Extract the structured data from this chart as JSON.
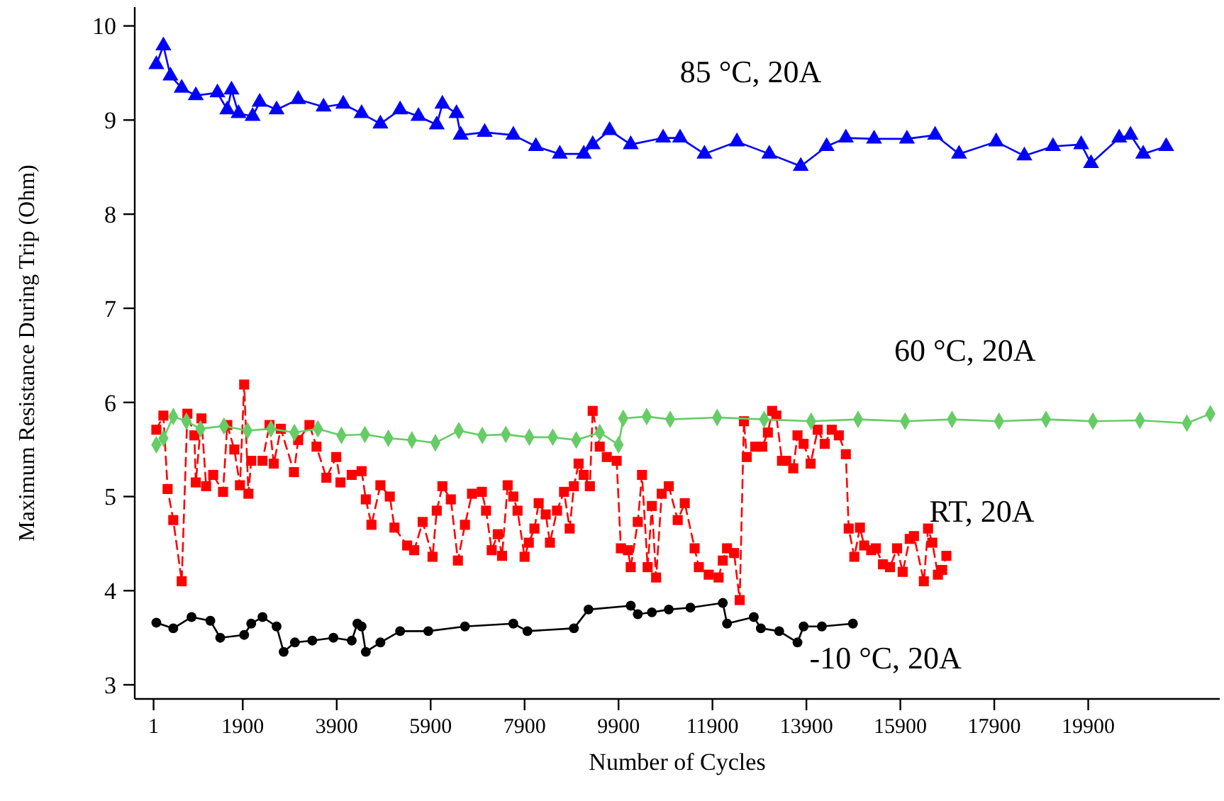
{
  "chart_data": {
    "type": "line",
    "xlabel": "Number of Cycles",
    "ylabel": "Maximum Resistance During Trip (Ohm)",
    "xlim": [
      -400,
      22700
    ],
    "ylim": [
      2.85,
      10.2
    ],
    "xticks": [
      1,
      1900,
      3900,
      5900,
      7900,
      9900,
      11900,
      13900,
      15900,
      17900,
      19900
    ],
    "yticks": [
      3,
      4,
      5,
      6,
      7,
      8,
      9,
      10
    ],
    "grid": false,
    "series": [
      {
        "name": "85 °C, 20A",
        "color": "#0000ff",
        "marker": "triangle",
        "line_style": "solid",
        "x": [
          60,
          210,
          360,
          600,
          900,
          1360,
          1570,
          1660,
          1810,
          2110,
          2260,
          2620,
          3080,
          3620,
          4040,
          4430,
          4830,
          5250,
          5640,
          6030,
          6150,
          6450,
          6540,
          7050,
          7660,
          8140,
          8650,
          9160,
          9350,
          9710,
          10160,
          10850,
          11210,
          11730,
          12420,
          13110,
          13780,
          14330,
          14740,
          15340,
          16040,
          16640,
          17150,
          17940,
          18540,
          19150,
          19750,
          19960,
          20560,
          20800,
          21070,
          21560
        ],
        "values": [
          9.59,
          9.79,
          9.47,
          9.34,
          9.26,
          9.29,
          9.11,
          9.32,
          9.07,
          9.04,
          9.19,
          9.11,
          9.22,
          9.14,
          9.17,
          9.07,
          8.96,
          9.11,
          9.04,
          8.95,
          9.17,
          9.07,
          8.84,
          8.87,
          8.84,
          8.72,
          8.64,
          8.64,
          8.74,
          8.89,
          8.74,
          8.81,
          8.81,
          8.64,
          8.77,
          8.64,
          8.51,
          8.72,
          8.81,
          8.8,
          8.8,
          8.84,
          8.64,
          8.77,
          8.62,
          8.72,
          8.74,
          8.54,
          8.81,
          8.84,
          8.64,
          8.72
        ]
      },
      {
        "name": "60 °C, 20A",
        "color": "#66cc66",
        "marker": "diamond",
        "line_style": "solid",
        "x": [
          60,
          210,
          420,
          700,
          1000,
          1500,
          2000,
          2500,
          3000,
          3500,
          4000,
          4500,
          5000,
          5500,
          6000,
          6500,
          7000,
          7500,
          8000,
          8500,
          9000,
          9500,
          9900,
          10000,
          10500,
          11000,
          12000,
          13000,
          14000,
          15000,
          16000,
          17000,
          18000,
          19000,
          20000,
          21000,
          22000,
          22500
        ],
        "values": [
          5.55,
          5.62,
          5.85,
          5.8,
          5.72,
          5.75,
          5.7,
          5.72,
          5.68,
          5.72,
          5.65,
          5.66,
          5.62,
          5.6,
          5.57,
          5.7,
          5.65,
          5.66,
          5.63,
          5.63,
          5.6,
          5.68,
          5.55,
          5.83,
          5.85,
          5.82,
          5.84,
          5.82,
          5.8,
          5.82,
          5.8,
          5.82,
          5.8,
          5.82,
          5.8,
          5.81,
          5.78,
          5.88
        ]
      },
      {
        "name": "RT, 20A",
        "color": "#ff0000",
        "marker": "square",
        "line_style": "dashed",
        "x": [
          60,
          210,
          300,
          420,
          600,
          720,
          870,
          900,
          1020,
          1120,
          1270,
          1480,
          1570,
          1720,
          1840,
          1930,
          2020,
          2080,
          2320,
          2470,
          2560,
          2710,
          2990,
          3080,
          3320,
          3470,
          3680,
          3890,
          3980,
          4220,
          4430,
          4520,
          4640,
          4830,
          5030,
          5130,
          5400,
          5550,
          5730,
          5940,
          6030,
          6150,
          6330,
          6480,
          6630,
          6780,
          6990,
          7080,
          7200,
          7330,
          7420,
          7540,
          7660,
          7750,
          7900,
          7990,
          8110,
          8200,
          8350,
          8440,
          8590,
          8740,
          8860,
          8950,
          9050,
          9160,
          9290,
          9350,
          9500,
          9650,
          9860,
          9950,
          10100,
          10160,
          10310,
          10400,
          10520,
          10610,
          10700,
          10820,
          10970,
          11160,
          11310,
          11520,
          11610,
          11820,
          12030,
          12120,
          12210,
          12360,
          12480,
          12570,
          12630,
          12810,
          12960,
          13080,
          13170,
          13260,
          13380,
          13470,
          13620,
          13710,
          13840,
          13990,
          14140,
          14290,
          14440,
          14590,
          14740,
          14800,
          14920,
          15040,
          15130,
          15280,
          15380,
          15530,
          15680,
          15830,
          15950,
          16100,
          16190,
          16400,
          16490,
          16580,
          16700,
          16790,
          16880
        ],
        "values": [
          5.71,
          5.86,
          5.08,
          4.75,
          4.1,
          5.88,
          5.65,
          5.15,
          5.83,
          5.11,
          5.23,
          5.05,
          5.76,
          5.5,
          5.12,
          6.19,
          5.03,
          5.38,
          5.38,
          5.76,
          5.35,
          5.72,
          5.26,
          5.6,
          5.76,
          5.53,
          5.2,
          5.42,
          5.15,
          5.23,
          5.27,
          4.97,
          4.7,
          5.12,
          5.0,
          4.67,
          4.48,
          4.43,
          4.73,
          4.36,
          4.85,
          5.11,
          4.97,
          4.32,
          4.7,
          5.03,
          5.05,
          4.85,
          4.43,
          4.6,
          4.37,
          5.12,
          5.0,
          4.85,
          4.36,
          4.51,
          4.66,
          4.93,
          4.81,
          4.51,
          4.85,
          5.05,
          4.66,
          5.11,
          5.35,
          5.23,
          5.11,
          5.91,
          5.53,
          5.42,
          5.38,
          4.45,
          4.43,
          4.25,
          4.73,
          5.23,
          4.25,
          4.9,
          4.14,
          5.03,
          5.11,
          4.75,
          4.93,
          4.45,
          4.25,
          4.17,
          4.14,
          4.32,
          4.45,
          4.4,
          3.9,
          5.8,
          5.42,
          5.53,
          5.53,
          5.68,
          5.91,
          5.86,
          5.38,
          5.38,
          5.3,
          5.65,
          5.56,
          5.35,
          5.71,
          5.56,
          5.71,
          5.65,
          5.45,
          4.66,
          4.36,
          4.67,
          4.48,
          4.43,
          4.45,
          4.28,
          4.25,
          4.45,
          4.2,
          4.55,
          4.58,
          4.1,
          4.66,
          4.51,
          4.17,
          4.22,
          4.37
        ]
      },
      {
        "name": "-10 °C, 20A",
        "color": "#000000",
        "marker": "circle",
        "line_style": "solid",
        "x": [
          60,
          420,
          810,
          1210,
          1420,
          1930,
          2080,
          2320,
          2620,
          2770,
          3010,
          3380,
          3830,
          4220,
          4340,
          4430,
          4520,
          4830,
          5250,
          5850,
          6630,
          7660,
          7960,
          8950,
          9260,
          10160,
          10310,
          10610,
          10970,
          11430,
          12120,
          12210,
          12780,
          12930,
          13320,
          13710,
          13840,
          14230,
          14890
        ],
        "values": [
          3.66,
          3.6,
          3.72,
          3.68,
          3.5,
          3.53,
          3.65,
          3.72,
          3.62,
          3.35,
          3.45,
          3.47,
          3.5,
          3.47,
          3.65,
          3.62,
          3.35,
          3.45,
          3.57,
          3.57,
          3.62,
          3.65,
          3.57,
          3.6,
          3.8,
          3.84,
          3.75,
          3.77,
          3.8,
          3.82,
          3.87,
          3.65,
          3.72,
          3.6,
          3.57,
          3.45,
          3.62,
          3.62,
          3.65
        ]
      }
    ]
  }
}
